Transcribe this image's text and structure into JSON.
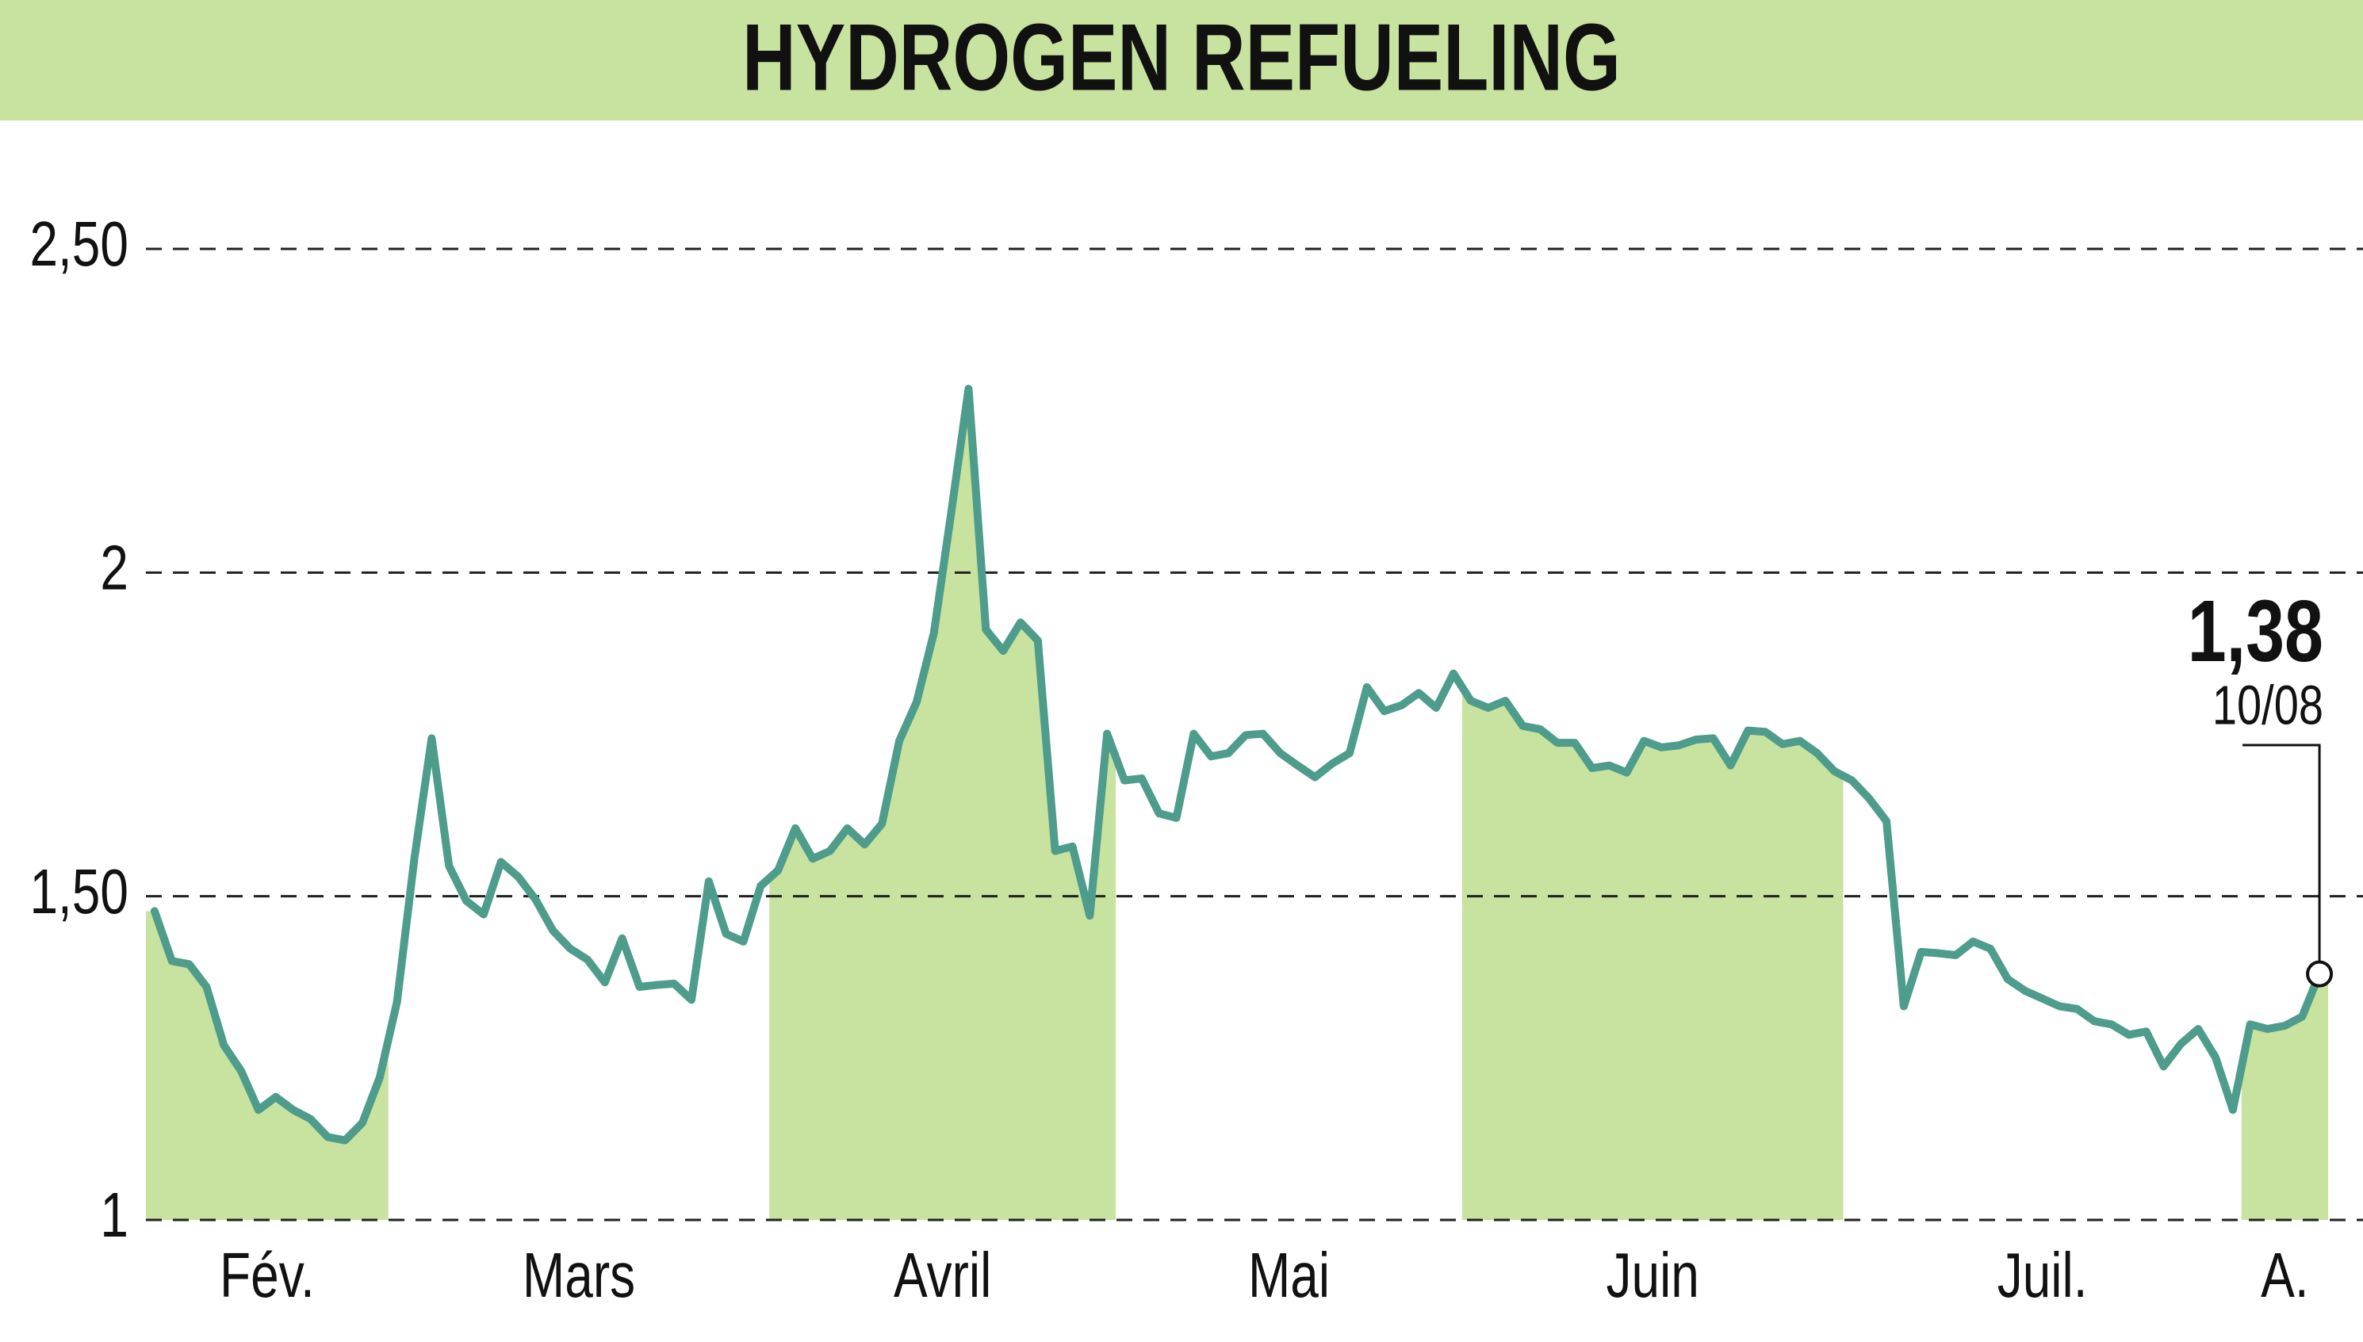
{
  "chart_data": {
    "type": "line",
    "title": "HYDROGEN REFUELING",
    "color": "#4e9c8c",
    "shade_color": "#c8e29f",
    "ylim": [
      1,
      2.5
    ],
    "yticks": [
      1,
      {
        "value": 1.5,
        "label": "1,50"
      },
      2,
      {
        "value": 2.5,
        "label": "2,50"
      }
    ],
    "grid": true,
    "months": [
      {
        "label": "Fév.",
        "shaded": true,
        "values": [
          1.477,
          1.4,
          1.395,
          1.36,
          1.27,
          1.23,
          1.17,
          1.19,
          1.17,
          1.156,
          1.128,
          1.123,
          1.15,
          1.22
        ]
      },
      {
        "label": "Mars",
        "shaded": false,
        "values": [
          1.337,
          1.558,
          1.744,
          1.547,
          1.493,
          1.472,
          1.553,
          1.53,
          1.495,
          1.447,
          1.419,
          1.402,
          1.367,
          1.435,
          1.36,
          1.363,
          1.365,
          1.34,
          1.523,
          1.442,
          1.43,
          1.516
        ]
      },
      {
        "label": "Avril",
        "shaded": true,
        "values": [
          1.54,
          1.605,
          1.558,
          1.57,
          1.605,
          1.58,
          1.612,
          1.74,
          1.8,
          1.907,
          2.093,
          2.284,
          1.912,
          1.879,
          1.923,
          1.895,
          1.57,
          1.577,
          1.47,
          1.751
        ]
      },
      {
        "label": "Mai",
        "shaded": false,
        "values": [
          1.679,
          1.682,
          1.628,
          1.621,
          1.751,
          1.716,
          1.721,
          1.749,
          1.751,
          1.721,
          1.702,
          1.684,
          1.705,
          1.721,
          1.823,
          1.786,
          1.795,
          1.814,
          1.791,
          1.844
        ]
      },
      {
        "label": "Juin",
        "shaded": true,
        "values": [
          1.802,
          1.791,
          1.802,
          1.763,
          1.758,
          1.737,
          1.737,
          1.698,
          1.702,
          1.691,
          1.74,
          1.73,
          1.733,
          1.742,
          1.744,
          1.702,
          1.756,
          1.754,
          1.735,
          1.74,
          1.721,
          1.693
        ]
      },
      {
        "label": "Juil.",
        "shaded": false,
        "values": [
          1.679,
          1.651,
          1.616,
          1.33,
          1.414,
          1.412,
          1.409,
          1.43,
          1.419,
          1.372,
          1.354,
          1.342,
          1.33,
          1.326,
          1.307,
          1.302,
          1.286,
          1.291,
          1.237,
          1.272,
          1.295,
          1.251,
          1.17
        ]
      },
      {
        "label": "A.",
        "shaded": true,
        "values": [
          1.302,
          1.295,
          1.3,
          1.314,
          1.38
        ]
      }
    ],
    "last_value_label": "1,38",
    "last_date": "10/08"
  }
}
